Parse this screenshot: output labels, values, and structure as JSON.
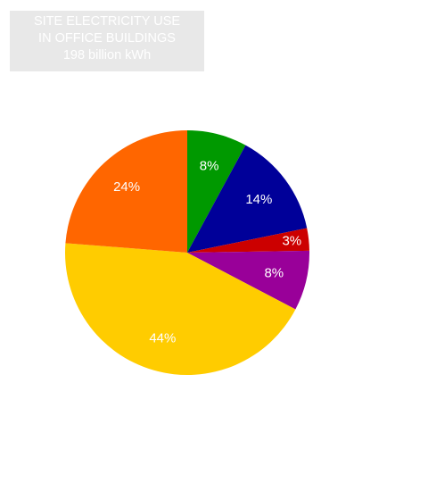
{
  "chart_data": {
    "type": "pie",
    "title": [
      "SITE ELECTRICITY USE",
      "IN OFFICE BUILDINGS",
      "198 billion kWh"
    ],
    "slices": [
      {
        "label": "8%",
        "value": 8,
        "color": "#009900"
      },
      {
        "label": "14%",
        "value": 14,
        "color": "#000099"
      },
      {
        "label": "3%",
        "value": 3,
        "color": "#cc0000"
      },
      {
        "label": "8%",
        "value": 8,
        "color": "#990099"
      },
      {
        "label": "44%",
        "value": 44,
        "color": "#ffcc00"
      },
      {
        "label": "24%",
        "value": 24,
        "color": "#ff6600"
      }
    ],
    "legend": "none"
  }
}
